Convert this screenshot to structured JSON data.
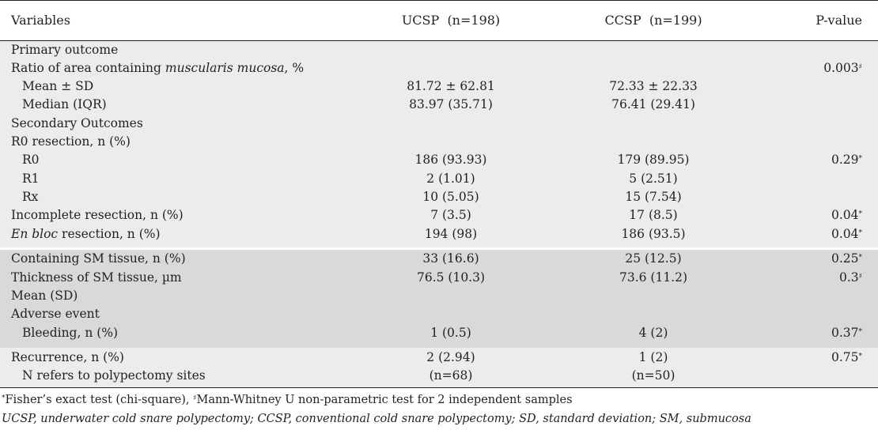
{
  "header": {
    "variables": "Variables",
    "ucsp": "UCSP  (n=198)",
    "ccsp": "CCSP  (n=199)",
    "pvalue": "P-value"
  },
  "rows": [
    {
      "label": "Primary outcome",
      "ucsp": "",
      "ccsp": "",
      "p": ""
    },
    {
      "label_pre": "Ratio of area containing ",
      "label_em": "muscularis mucosa",
      "label_post": ", %",
      "ucsp": "",
      "ccsp": "",
      "p": "0.003",
      "p_sup": "♯"
    },
    {
      "label": "Mean ± SD",
      "ucsp": "81.72 ± 62.81",
      "ccsp": "72.33 ± 22.33",
      "p": ""
    },
    {
      "label": "Median (IQR)",
      "ucsp": "83.97 (35.71)",
      "ccsp": "76.41 (29.41)",
      "p": ""
    },
    {
      "label": "Secondary Outcomes",
      "ucsp": "",
      "ccsp": "",
      "p": ""
    },
    {
      "label": "R0 resection, n (%)",
      "ucsp": "",
      "ccsp": "",
      "p": ""
    },
    {
      "label": "R0",
      "ucsp": "186 (93.93)",
      "ccsp": "179 (89.95)",
      "p": "0.29",
      "p_sup": "*"
    },
    {
      "label": "R1",
      "ucsp": "2 (1.01)",
      "ccsp": "5 (2.51)",
      "p": ""
    },
    {
      "label": "Rx",
      "ucsp": "10 (5.05)",
      "ccsp": "15 (7.54)",
      "p": ""
    },
    {
      "label": "Incomplete resection, n (%)",
      "ucsp": "7 (3.5)",
      "ccsp": "17 (8.5)",
      "p": "0.04",
      "p_sup": "*"
    },
    {
      "label_em": "En bloc",
      "label_post": " resection, n (%)",
      "ucsp": "194 (98)",
      "ccsp": "186 (93.5)",
      "p": "0.04",
      "p_sup": "*"
    },
    {
      "label": "Containing SM tissue, n (%)",
      "ucsp": "33 (16.6)",
      "ccsp": "25 (12.5)",
      "p": "0.25",
      "p_sup": "*"
    },
    {
      "label": "Thickness of SM tissue, µm",
      "ucsp": "76.5 (10.3)",
      "ccsp": "73.6 (11.2)",
      "p": "0.3",
      "p_sup": "♯"
    },
    {
      "label": "Mean (SD)",
      "ucsp": "",
      "ccsp": "",
      "p": ""
    },
    {
      "label": "Adverse event",
      "ucsp": "",
      "ccsp": "",
      "p": ""
    },
    {
      "label": "Bleeding, n (%)",
      "ucsp": "1 (0.5)",
      "ccsp": "4 (2)",
      "p": "0.37",
      "p_sup": "*"
    },
    {
      "label": "Recurrence, n (%)",
      "ucsp": "2 (2.94)",
      "ccsp": "1 (2)",
      "p": "0.75",
      "p_sup": "*"
    },
    {
      "label": "N refers to polypectomy sites",
      "ucsp": "(n=68)",
      "ccsp": "(n=50)",
      "p": ""
    }
  ],
  "footnotes": {
    "sup1": "*",
    "text1": "Fisher’s exact test (chi-square), ",
    "sup2": "♯",
    "text2": "Mann-Whitney U non-parametric test for 2 independent samples",
    "abbrev": "UCSP, underwater cold snare polypectomy; CCSP, conventional cold snare polypectomy; SD, standard deviation; SM, submucosa"
  }
}
